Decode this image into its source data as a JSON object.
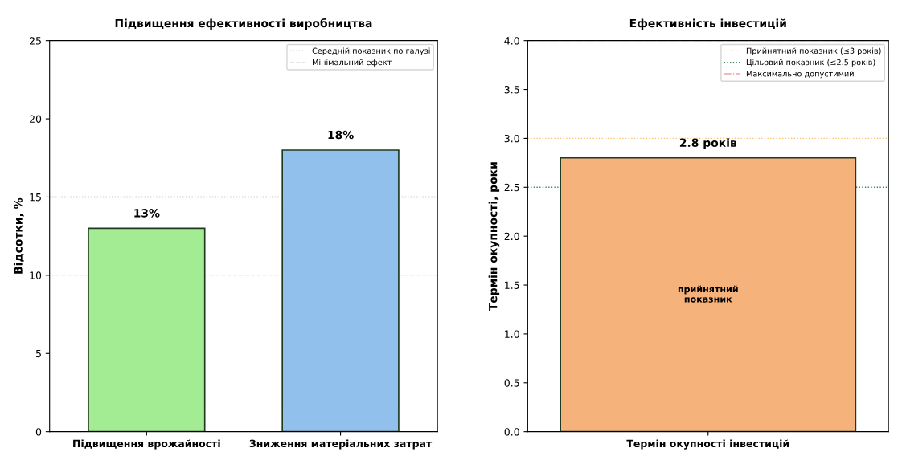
{
  "chart_data": [
    {
      "type": "bar",
      "title": "Підвищення ефективності виробництва",
      "ylabel": "Відсотки, %",
      "categories": [
        "Підвищення врожайності",
        "Зниження матеріальних затрат"
      ],
      "values": [
        13,
        18
      ],
      "colors": [
        "#a3ec93",
        "#92c0ec"
      ],
      "value_labels": [
        "13%",
        "18%"
      ],
      "ylim": [
        0,
        25
      ],
      "yticks": [
        0,
        5,
        10,
        15,
        20,
        25
      ],
      "ref_lines": [
        {
          "axis": "y",
          "value": 15,
          "label": "Середній показник по галузі",
          "color": "#999999",
          "line_style": "dotted"
        },
        {
          "axis": "y",
          "value": 10,
          "label": "Мінімальний ефект",
          "color": "#e6e6e6",
          "line_style": "dashed"
        }
      ],
      "legend": "top right"
    },
    {
      "type": "bar",
      "title": "Ефективність інвестицій",
      "ylabel": "Термін окупності, роки",
      "categories": [
        "Термін окупності інвестицій"
      ],
      "values": [
        2.8
      ],
      "colors": [
        "#f5b27a"
      ],
      "value_labels": [
        "2.8 років"
      ],
      "ylim": [
        0,
        4.0
      ],
      "yticks": [
        {
          "value": 0,
          "label": "0.0"
        },
        0.5,
        {
          "value": 1,
          "label": "1.0"
        },
        1.5,
        {
          "value": 2,
          "label": "2.0"
        },
        2.5,
        {
          "value": 3,
          "label": "3.0"
        },
        3.5,
        {
          "value": 4,
          "label": "4.0"
        }
      ],
      "ref_lines": [
        {
          "axis": "y",
          "value": 3,
          "label": "Прийнятний показник (≤3 років)",
          "color": "#f5c26b",
          "line_style": "dotted"
        },
        {
          "axis": "y",
          "value": 2.5,
          "label": "Цільовий показник (≤2.5 років)",
          "color": "#3a8a5a",
          "line_style": "dotted"
        },
        {
          "axis": "y",
          "value": 4.0,
          "label": "Максимально допустимий",
          "color": "#f2a0a0",
          "line_style": "dashdot"
        }
      ],
      "annotations": [
        "прийнятний\nпоказник"
      ],
      "legend": "top right"
    }
  ]
}
